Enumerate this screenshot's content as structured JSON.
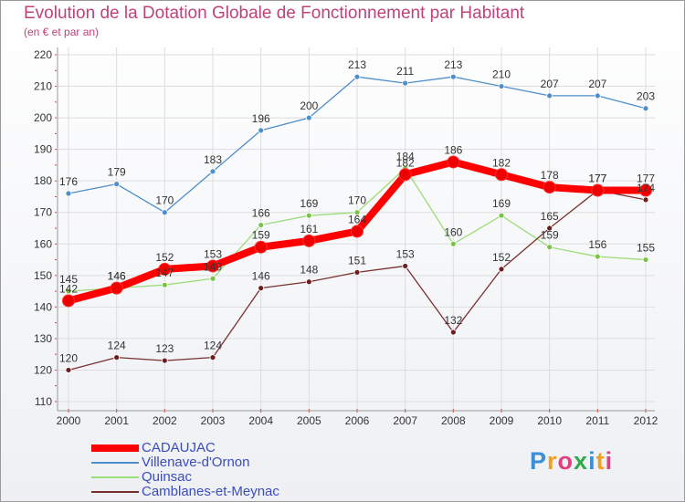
{
  "header": {
    "title": "Evolution de la Dotation Globale de Fonctionnement par Habitant",
    "subtitle": "(en € et par an)"
  },
  "logo": {
    "text": "Proxiti"
  },
  "chart_data": {
    "type": "line",
    "title": "Evolution de la Dotation Globale de Fonctionnement par Habitant",
    "subtitle": "(en € et par an)",
    "xlabel": "",
    "ylabel": "",
    "categories": [
      "2000",
      "2001",
      "2002",
      "2003",
      "2004",
      "2005",
      "2006",
      "2007",
      "2008",
      "2009",
      "2010",
      "2011",
      "2012"
    ],
    "ylim": [
      110,
      220
    ],
    "yticks": [
      110,
      120,
      130,
      140,
      150,
      160,
      170,
      180,
      190,
      200,
      210,
      220
    ],
    "grid": true,
    "legend_position": "bottom-left",
    "series": [
      {
        "name": "Villenave-d'Ornon",
        "color": "#4d8fcc",
        "marker": "#4d8fcc",
        "values": [
          176,
          179,
          170,
          183,
          196,
          200,
          213,
          211,
          213,
          210,
          207,
          207,
          203
        ]
      },
      {
        "name": "Quinsac",
        "color": "#9ddc7a",
        "marker": "#79c444",
        "values": [
          145,
          146,
          147,
          149,
          166,
          169,
          170,
          184,
          160,
          169,
          159,
          156,
          155
        ]
      },
      {
        "name": "Camblanes-et-Meynac",
        "color": "#7a2f2f",
        "marker": "#6b1f1f",
        "values": [
          120,
          124,
          123,
          124,
          146,
          148,
          151,
          153,
          132,
          152,
          165,
          177,
          174
        ]
      },
      {
        "name": "CADAUJAC",
        "color": "#ff0000",
        "marker": "#ee0000",
        "thick": true,
        "values": [
          142,
          146,
          152,
          153,
          159,
          161,
          164,
          182,
          186,
          182,
          178,
          177,
          177
        ]
      }
    ]
  }
}
